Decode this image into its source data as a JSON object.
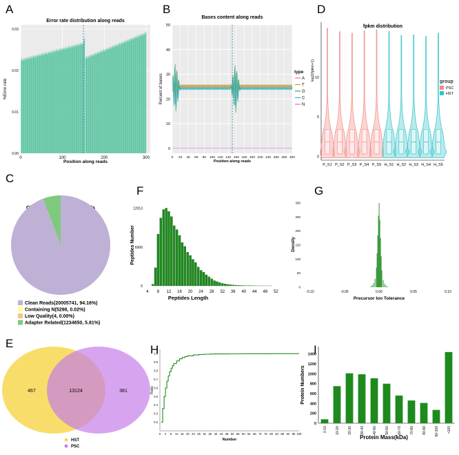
{
  "panels": {
    "A": {
      "letter": "A",
      "chart_data": {
        "type": "bar",
        "title": "Error rate distribution along reads",
        "xlabel": "Position along reads",
        "ylabel": "%Error rate",
        "xlim": [
          0,
          310
        ],
        "ylim": [
          0,
          0.031
        ],
        "xticks": [
          "0",
          "100",
          "200",
          "300"
        ],
        "yticks": [
          "0.00",
          "0.01",
          "0.02",
          "0.03"
        ],
        "segments": [
          {
            "x": [
              1,
              150
            ],
            "y": [
              0.0225,
              0.0265
            ]
          },
          {
            "x": [
              151,
              153
            ],
            "y": [
              0.0275,
              0.0277
            ]
          },
          {
            "x": [
              155,
              300
            ],
            "y": [
              0.023,
              0.029
            ]
          }
        ],
        "divider_x": 150
      }
    },
    "B": {
      "letter": "B",
      "chart_data": {
        "type": "line",
        "title": "Bases content along reads",
        "xlabel": "Position along reads",
        "ylabel": "Percent of bases",
        "xlim": [
          0,
          300
        ],
        "ylim": [
          -2,
          50
        ],
        "xticks": [
          "0",
          "20",
          "40",
          "60",
          "80",
          "100",
          "120",
          "140",
          "160",
          "180",
          "200",
          "220",
          "240",
          "260",
          "280",
          "300"
        ],
        "yticks": [
          "0",
          "10",
          "20",
          "30",
          "40",
          "50"
        ],
        "legend_title": "type",
        "series": [
          {
            "name": "A",
            "base": 25,
            "color": "#e8736e"
          },
          {
            "name": "T",
            "base": 25.5,
            "color": "#b5a02a"
          },
          {
            "name": "G",
            "base": 24.5,
            "color": "#2ab04a"
          },
          {
            "name": "C",
            "base": 24,
            "color": "#1fb6d6"
          },
          {
            "name": "N",
            "base": 0,
            "color": "#d46adf"
          }
        ],
        "spike_centers": [
          8,
          158
        ],
        "divider_x": 150
      }
    },
    "D": {
      "letter": "D",
      "chart_data": {
        "type": "violin",
        "title": "fpkm distribution",
        "ylabel": "log2(fpkm+1)",
        "ylim": [
          -0.5,
          17
        ],
        "yticks": [
          "0",
          "5",
          "10"
        ],
        "categories": [
          "P_S1",
          "P_S2",
          "P_S3",
          "P_S4",
          "P_S5",
          "H_S1",
          "H_S2",
          "H_S3",
          "H_S4",
          "H_S5"
        ],
        "groups": [
          "PSC",
          "PSC",
          "PSC",
          "PSC",
          "PSC",
          "HST",
          "HST",
          "HST",
          "HST",
          "HST"
        ],
        "max": [
          16.2,
          15.8,
          15.6,
          15.9,
          16.0,
          15.8,
          15.3,
          15.4,
          15.2,
          15.6
        ],
        "q1": 0.3,
        "median": 1.8,
        "q3": 3.4,
        "legend_title": "group",
        "legend": [
          {
            "name": "PSC",
            "color": "#f08a84"
          },
          {
            "name": "HST",
            "color": "#33c3c8"
          }
        ]
      }
    },
    "C": {
      "letter": "C",
      "chart_data": {
        "type": "pie",
        "title": "Classification of Raw Reads",
        "slices": [
          {
            "label": "Clean Reads(20005741,  94.16%)",
            "value": 94.16,
            "color": "#bfb0d6"
          },
          {
            "label": "Containing N(5298, 0.02%)",
            "value": 0.02,
            "color": "#ffff99"
          },
          {
            "label": "Low Quality(4, 0.00%)",
            "value": 0.0,
            "color": "#fdc086"
          },
          {
            "label": "Adapter Related(1234650, 5.81%)",
            "value": 5.81,
            "color": "#7fc97f"
          }
        ]
      }
    },
    "F": {
      "letter": "F",
      "chart_data": {
        "type": "bar",
        "xlabel": "Peptides Length",
        "ylabel": "Peptides Number",
        "xlim": [
          3,
          56
        ],
        "ylim": [
          0,
          12600
        ],
        "xticks": [
          "4",
          "8",
          "12",
          "16",
          "20",
          "24",
          "28",
          "32",
          "36",
          "40",
          "44",
          "48",
          "52"
        ],
        "yticks": [
          "0",
          "6006",
          "12013"
        ],
        "x": [
          6,
          7,
          8,
          9,
          10,
          11,
          12,
          13,
          14,
          15,
          16,
          17,
          18,
          19,
          20,
          21,
          22,
          23,
          24,
          25,
          26,
          27,
          28,
          29,
          30,
          31,
          32,
          33,
          34,
          35,
          36,
          37,
          38,
          39,
          40,
          41,
          42,
          43,
          44,
          45,
          46,
          47,
          48,
          49,
          50
        ],
        "values": [
          250,
          2800,
          8000,
          10500,
          11800,
          12013,
          11500,
          10700,
          9300,
          8700,
          7800,
          6700,
          6100,
          5200,
          4700,
          4100,
          3600,
          2900,
          2400,
          2100,
          1700,
          1400,
          1100,
          800,
          650,
          500,
          380,
          300,
          220,
          170,
          130,
          100,
          80,
          60,
          45,
          35,
          28,
          22,
          15,
          12,
          10,
          8,
          6,
          5,
          4
        ]
      }
    },
    "G": {
      "letter": "G",
      "chart_data": {
        "type": "histogram",
        "xlabel": "Precursor Ion Tolerance",
        "ylabel": "Density",
        "xlim": [
          -0.11,
          0.11
        ],
        "ylim": [
          0,
          305
        ],
        "xticks": [
          "-0.10",
          "-0.05",
          "0.00",
          "0.05",
          "0.10"
        ],
        "yticks": [
          "0",
          "50",
          "100",
          "150",
          "200",
          "250",
          "300"
        ],
        "x": [
          -0.012,
          -0.01,
          -0.008,
          -0.006,
          -0.004,
          -0.003,
          -0.002,
          -0.001,
          0.0,
          0.001,
          0.002,
          0.003,
          0.004,
          0.006,
          0.008,
          0.01,
          0.012
        ],
        "values": [
          4,
          8,
          15,
          30,
          70,
          120,
          185,
          255,
          300,
          240,
          175,
          110,
          60,
          25,
          12,
          6,
          3
        ]
      }
    },
    "E": {
      "letter": "E",
      "chart_data": {
        "type": "venn",
        "sets": [
          {
            "name": "HST",
            "only": "467",
            "color": "#f7d54a"
          },
          {
            "name": "PSC",
            "only": "381",
            "color": "#c47ae8"
          }
        ],
        "intersection": "13124"
      }
    },
    "H": {
      "letter": "H",
      "chart_data": {
        "type": "line",
        "xlabel": "Number",
        "ylabel": "Ratio",
        "xlim": [
          0,
          100
        ],
        "ylim": [
          0.1,
          1.05
        ],
        "xticks": [
          "0",
          "4",
          "8",
          "12",
          "16",
          "20",
          "24",
          "28",
          "32",
          "36",
          "40",
          "44",
          "48",
          "52",
          "56",
          "60",
          "64",
          "68",
          "72",
          "76",
          "80",
          "84",
          "88",
          "92",
          "96",
          "100"
        ],
        "yticks": [
          "0.2",
          "0.3",
          "0.4",
          "0.5",
          "0.6",
          "0.7",
          "0.8",
          "0.9",
          "1.0"
        ],
        "x": [
          1,
          2,
          3,
          4,
          5,
          6,
          7,
          8,
          9,
          10,
          12,
          14,
          16,
          18,
          20,
          24,
          28,
          32,
          36,
          40,
          50,
          60,
          70,
          80,
          90,
          100
        ],
        "values": [
          0.2,
          0.36,
          0.5,
          0.6,
          0.68,
          0.74,
          0.79,
          0.83,
          0.86,
          0.885,
          0.915,
          0.94,
          0.955,
          0.967,
          0.975,
          0.985,
          0.99,
          0.994,
          0.996,
          0.997,
          0.998,
          0.999,
          0.999,
          1.0,
          1.0,
          1.0
        ]
      }
    },
    "I": {
      "letter": "I",
      "chart_data": {
        "type": "bar",
        "xlabel": "Protein Mass(kDa)",
        "ylabel": "Protein Numbers",
        "ylim": [
          0,
          1550
        ],
        "yticks": [
          "0",
          "200",
          "400",
          "600",
          "800",
          "1000",
          "1200",
          "1400"
        ],
        "categories": [
          "0-10",
          "10-20",
          "20-30",
          "30-40",
          "40-50",
          "50-60",
          "60-70",
          "70-80",
          "80-90",
          "90-100",
          ">100"
        ],
        "values": [
          80,
          750,
          1010,
          990,
          910,
          800,
          560,
          460,
          410,
          270,
          1440
        ]
      }
    }
  }
}
